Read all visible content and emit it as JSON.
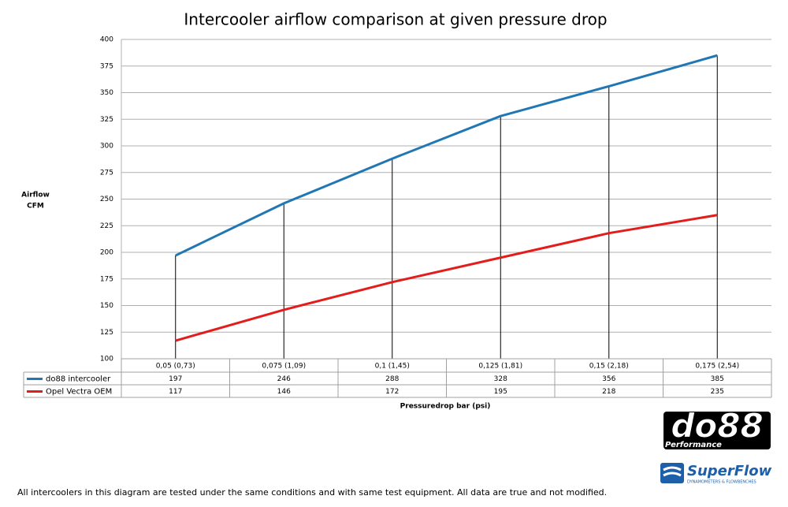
{
  "chart_data": {
    "type": "line",
    "title": "Intercooler airflow comparison at given pressure drop",
    "y_label": [
      "Airflow",
      "CFM"
    ],
    "x_label": "Pressuredrop bar (psi)",
    "categories": [
      "0,05 (0,73)",
      "0,075 (1,09)",
      "0,1 (1,45)",
      "0,125 (1,81)",
      "0,15 (2,18)",
      "0,175 (2,54)"
    ],
    "series": [
      {
        "name": "do88 intercooler",
        "color": "#2077b4",
        "values": [
          197,
          246,
          288,
          328,
          356,
          385
        ]
      },
      {
        "name": "Opel Vectra OEM",
        "color": "#e31c1c",
        "values": [
          117,
          146,
          172,
          195,
          218,
          235
        ]
      }
    ],
    "ylim": [
      100,
      400
    ],
    "yticks": [
      100,
      125,
      150,
      175,
      200,
      225,
      250,
      275,
      300,
      325,
      350,
      375,
      400
    ],
    "grid": true,
    "drop_lines": true,
    "data_table": true
  },
  "footnote": "All intercoolers in this diagram are tested under the same conditions and with same test equipment. All data are true and not modified.",
  "logos": {
    "do88": "do88",
    "do88_sub": "Performance",
    "superflow": "SuperFlow",
    "superflow_sub": "DYNAMOMETERS & FLOWBENCHES"
  }
}
